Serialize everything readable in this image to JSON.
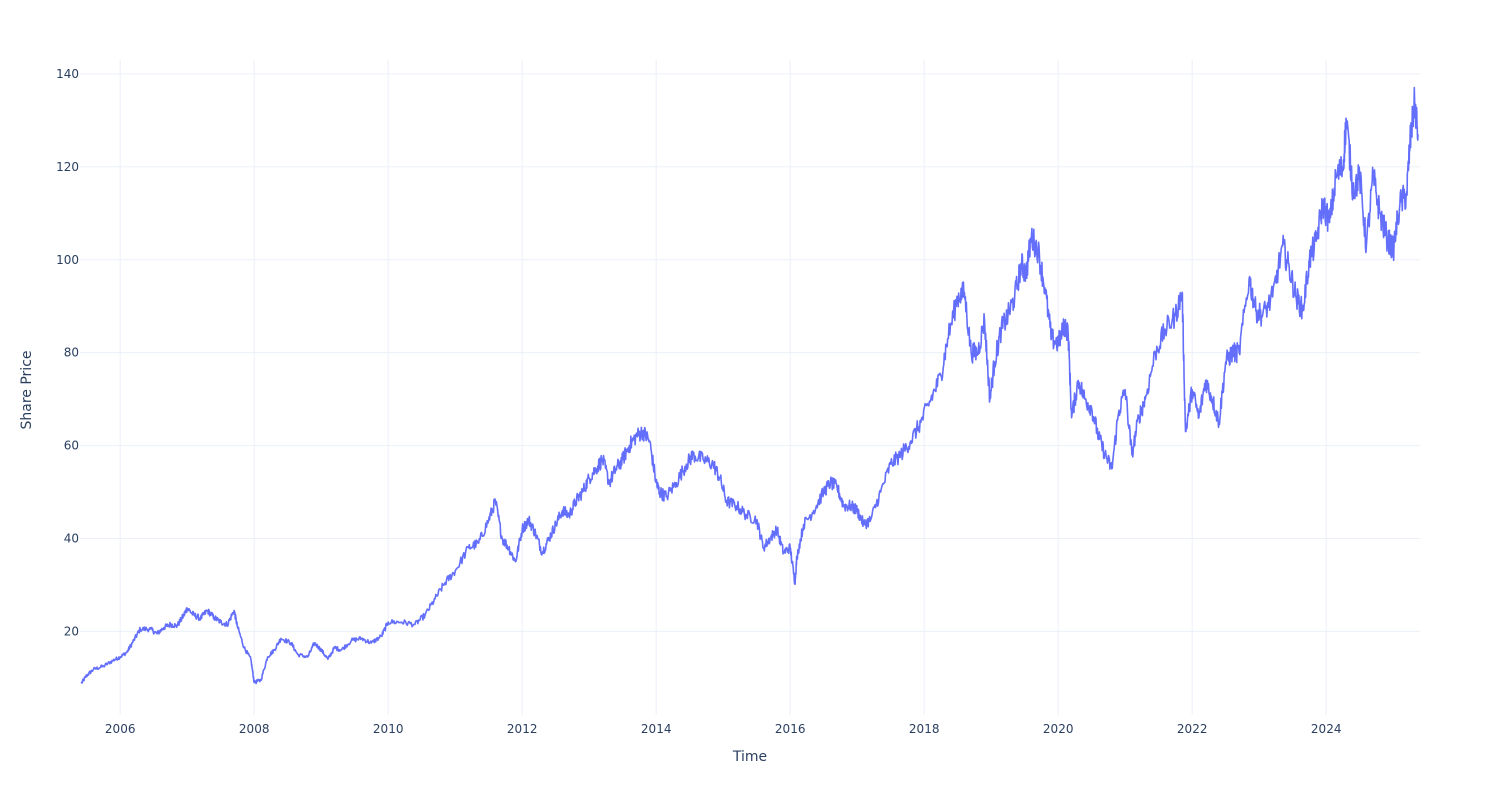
{
  "chart_data": {
    "type": "line",
    "title": "",
    "xlabel": "Time",
    "ylabel": "Share Price",
    "xlim": [
      2005.4,
      2025.4
    ],
    "ylim": [
      2,
      143
    ],
    "grid": true,
    "legend": "none",
    "line_color": "#636efa",
    "grid_color": "#ebf0f8",
    "text_color": "#2a3f5f",
    "x_ticks": [
      {
        "value": 2006,
        "label": "2006"
      },
      {
        "value": 2008,
        "label": "2008"
      },
      {
        "value": 2010,
        "label": "2010"
      },
      {
        "value": 2012,
        "label": "2012"
      },
      {
        "value": 2014,
        "label": "2014"
      },
      {
        "value": 2016,
        "label": "2016"
      },
      {
        "value": 2018,
        "label": "2018"
      },
      {
        "value": 2020,
        "label": "2020"
      },
      {
        "value": 2022,
        "label": "2022"
      },
      {
        "value": 2024,
        "label": "2024"
      }
    ],
    "y_ticks": [
      {
        "value": 20,
        "label": "20"
      },
      {
        "value": 40,
        "label": "40"
      },
      {
        "value": 60,
        "label": "60"
      },
      {
        "value": 80,
        "label": "80"
      },
      {
        "value": 100,
        "label": "100"
      },
      {
        "value": 120,
        "label": "120"
      },
      {
        "value": 140,
        "label": "140"
      }
    ],
    "series": [
      {
        "x": [
          2005.42,
          2005.5,
          2005.6,
          2005.75,
          2005.9,
          2006.0,
          2006.1,
          2006.2,
          2006.3,
          2006.45,
          2006.55,
          2006.65,
          2006.75,
          2006.85,
          2006.95,
          2007.0,
          2007.1,
          2007.2,
          2007.3,
          2007.4,
          2007.5,
          2007.6,
          2007.7,
          2007.75,
          2007.85,
          2007.95,
          2008.0,
          2008.1,
          2008.2,
          2008.3,
          2008.4,
          2008.55,
          2008.65,
          2008.8,
          2008.9,
          2009.0,
          2009.1,
          2009.2,
          2009.3,
          2009.45,
          2009.6,
          2009.75,
          2009.9,
          2010.0,
          2010.2,
          2010.4,
          2010.55,
          2010.7,
          2010.85,
          2011.0,
          2011.2,
          2011.35,
          2011.5,
          2011.6,
          2011.7,
          2011.8,
          2011.9,
          2012.0,
          2012.1,
          2012.2,
          2012.3,
          2012.4,
          2012.5,
          2012.6,
          2012.7,
          2012.8,
          2012.9,
          2013.0,
          2013.1,
          2013.2,
          2013.3,
          2013.4,
          2013.5,
          2013.6,
          2013.7,
          2013.8,
          2013.9,
          2014.0,
          2014.05,
          2014.15,
          2014.3,
          2014.45,
          2014.55,
          2014.7,
          2014.85,
          2014.95,
          2015.05,
          2015.2,
          2015.35,
          2015.5,
          2015.6,
          2015.7,
          2015.8,
          2015.9,
          2016.0,
          2016.07,
          2016.1,
          2016.2,
          2016.35,
          2016.5,
          2016.6,
          2016.7,
          2016.8,
          2016.9,
          2017.0,
          2017.1,
          2017.2,
          2017.35,
          2017.5,
          2017.65,
          2017.8,
          2017.95,
          2018.1,
          2018.25,
          2018.35,
          2018.5,
          2018.6,
          2018.7,
          2018.8,
          2018.9,
          2018.98,
          2019.05,
          2019.15,
          2019.25,
          2019.35,
          2019.45,
          2019.52,
          2019.6,
          2019.7,
          2019.8,
          2019.9,
          2020.0,
          2020.1,
          2020.15,
          2020.2,
          2020.3,
          2020.4,
          2020.5,
          2020.6,
          2020.7,
          2020.8,
          2020.9,
          2021.0,
          2021.1,
          2021.2,
          2021.3,
          2021.45,
          2021.6,
          2021.75,
          2021.85,
          2021.9,
          2022.0,
          2022.1,
          2022.2,
          2022.3,
          2022.4,
          2022.5,
          2022.6,
          2022.7,
          2022.85,
          2022.95,
          2023.05,
          2023.2,
          2023.35,
          2023.45,
          2023.55,
          2023.65,
          2023.75,
          2023.85,
          2023.95,
          2024.05,
          2024.15,
          2024.25,
          2024.3,
          2024.4,
          2024.5,
          2024.6,
          2024.7,
          2024.8,
          2024.9,
          2025.0,
          2025.1,
          2025.2,
          2025.25,
          2025.32,
          2025.37
        ],
        "y": [
          8.8,
          10.5,
          11.8,
          12.5,
          13.8,
          14.5,
          15.5,
          18,
          20.5,
          20.5,
          19.5,
          20.8,
          21.5,
          21.2,
          23.5,
          25,
          23.5,
          22.8,
          24.5,
          23,
          22,
          21.5,
          24.5,
          21,
          16.5,
          14,
          9,
          9.5,
          14.5,
          16,
          18.5,
          17.5,
          15,
          14.5,
          17.5,
          16,
          14,
          16.5,
          16,
          18,
          18.5,
          17.5,
          19,
          22,
          22,
          21.5,
          23.5,
          27,
          30.5,
          33,
          38,
          39,
          44,
          48,
          40,
          38,
          35,
          42,
          44,
          41,
          37,
          40,
          43,
          46,
          45,
          48,
          50,
          53,
          55,
          57,
          52,
          55,
          57,
          60,
          62,
          63,
          61,
          52,
          50,
          49,
          52,
          56,
          58,
          57,
          56,
          53,
          48,
          47,
          45,
          44,
          38,
          40,
          42,
          37,
          38,
          30.5,
          36,
          43,
          46,
          50,
          52,
          51,
          47,
          47,
          46,
          43,
          44,
          50,
          56,
          58,
          61,
          65,
          70,
          75,
          83,
          92,
          93,
          80,
          80,
          87,
          70,
          78,
          85,
          88,
          92,
          99,
          97,
          105,
          102,
          94,
          83,
          82,
          86,
          84,
          66,
          74,
          70,
          68,
          62,
          58,
          55,
          67,
          72,
          58,
          66,
          70,
          80,
          85,
          88,
          93,
          63,
          72,
          66,
          74,
          70,
          65,
          78,
          80,
          80,
          96,
          89,
          88,
          92,
          103,
          98,
          92,
          89,
          100,
          104,
          112,
          108,
          118,
          120,
          130,
          115,
          118,
          103,
          118,
          110,
          105,
          102,
          112,
          114,
          125,
          134,
          127
        ]
      }
    ]
  }
}
